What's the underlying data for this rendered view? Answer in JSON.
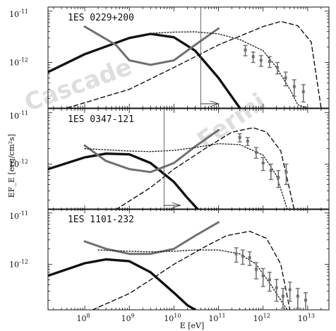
{
  "figure": {
    "ylabel": "EF_E [erg/cm²s]",
    "xlabel": "E [eV]",
    "x_tick_labels": [
      {
        "mantissa": "10",
        "exponent": "8"
      },
      {
        "mantissa": "10",
        "exponent": "9"
      },
      {
        "mantissa": "10",
        "exponent": "10"
      },
      {
        "mantissa": "10",
        "exponent": "11"
      },
      {
        "mantissa": "10",
        "exponent": "12"
      },
      {
        "mantissa": "10",
        "exponent": "13"
      }
    ],
    "y_tick_labels": [
      {
        "mantissa": "10",
        "exponent": "-11"
      },
      {
        "mantissa": "10",
        "exponent": "-12"
      }
    ],
    "watermarks": {
      "cascade": "Cascade",
      "fermi": "Fermi"
    },
    "colors": {
      "cascade_curve": "#111111",
      "fermi_sensitivity": "#707070",
      "intrinsic_dashed": "#111111",
      "absorbed_dotted": "#222222",
      "data_points": "#707070"
    }
  },
  "chart_data": [
    {
      "type": "line",
      "title": "1ES 0229+200",
      "x_scale": "log",
      "y_scale": "log",
      "xlim": [
        15000000,
        30000000000000
      ],
      "ylim": [
        1.3e-13,
        1.2e-11
      ],
      "series": [
        {
          "role": "cascade",
          "style": "solid-thick-black",
          "x": [
            15000000,
            100000000,
            1000000000,
            3000000000,
            10000000000,
            30000000000,
            100000000000,
            300000000000
          ],
          "y": [
            6.5e-13,
            1.45e-12,
            3e-12,
            3.6e-12,
            3.1e-12,
            1.7e-12,
            5e-13,
            1.3e-13
          ]
        },
        {
          "role": "fermi-sensitivity",
          "style": "solid-thick-gray",
          "x": [
            100000000,
            500000000,
            1000000000,
            3000000000,
            10000000000,
            30000000000,
            100000000000
          ],
          "y": [
            5e-12,
            2.2e-12,
            1.1e-12,
            9e-13,
            1.1e-12,
            2.2e-12,
            4.6e-12
          ]
        },
        {
          "role": "absorbed-model",
          "style": "dotted",
          "x": [
            3000000000,
            10000000000,
            30000000000,
            100000000000,
            300000000000,
            1000000000000,
            2000000000000,
            4000000000000,
            6000000000000,
            10000000000000
          ],
          "y": [
            3.7e-12,
            3.9e-12,
            3.95e-12,
            3.6e-12,
            2.8e-12,
            1.7e-12,
            8e-13,
            3e-13,
            1.5e-13,
            1.3e-13
          ]
        },
        {
          "role": "intrinsic-model",
          "style": "dashed",
          "x": [
            40000000,
            1000000000,
            10000000000,
            100000000000,
            1000000000000,
            2500000000000,
            6000000000000,
            12000000000000,
            20000000000000
          ],
          "y": [
            1.3e-13,
            3e-13,
            8e-13,
            2.2e-12,
            5e-12,
            6.3e-12,
            5.2e-12,
            2.5e-12,
            1.3e-13
          ]
        },
        {
          "role": "measured-points",
          "style": "errorbars",
          "x": [
            400000000000,
            600000000000,
            900000000000,
            1400000000000,
            2100000000000,
            3200000000000,
            5000000000000,
            8000000000000
          ],
          "y": [
            1.75e-12,
            1.3e-12,
            1.1e-12,
            1.05e-12,
            8e-13,
            5e-13,
            3.4e-13,
            2.7e-13
          ],
          "yerr_low": [
            4e-13,
            3e-13,
            2.6e-13,
            2.5e-13,
            2e-13,
            1.5e-13,
            1.2e-13,
            1e-13
          ],
          "yerr_high": [
            4e-13,
            3e-13,
            2.6e-13,
            2.5e-13,
            2e-13,
            1.5e-13,
            1.2e-13,
            1e-13
          ]
        }
      ],
      "limit_arrow": {
        "x": 40000000000,
        "y_from": 1.3e-13,
        "y_top": 1.2e-11,
        "x_to": 100000000000
      }
    },
    {
      "type": "line",
      "title": "1ES 0347-121",
      "x_scale": "log",
      "y_scale": "log",
      "xlim": [
        15000000,
        30000000000000
      ],
      "ylim": [
        1.3e-13,
        1.2e-11
      ],
      "series": [
        {
          "role": "cascade",
          "style": "solid-thick-black",
          "x": [
            15000000,
            100000000,
            300000000,
            1000000000,
            3000000000,
            10000000000,
            20000000000,
            35000000000
          ],
          "y": [
            8e-13,
            1.35e-12,
            1.6e-12,
            1.55e-12,
            1.05e-12,
            4.5e-13,
            2.2e-13,
            1.3e-13
          ]
        },
        {
          "role": "fermi-sensitivity",
          "style": "solid-thick-gray",
          "x": [
            100000000,
            300000000,
            1000000000,
            3000000000,
            10000000000,
            30000000000,
            100000000000
          ],
          "y": [
            2.3e-12,
            1.15e-12,
            8e-13,
            7e-13,
            1.05e-12,
            2.2e-12,
            4.6e-12
          ]
        },
        {
          "role": "absorbed-model",
          "style": "dotted",
          "x": [
            100000000,
            1000000000,
            3000000000,
            10000000000,
            30000000000,
            100000000000,
            300000000000,
            1000000000000,
            2000000000000,
            3500000000000
          ],
          "y": [
            2e-12,
            1.8e-12,
            1.75e-12,
            1.85e-12,
            2.1e-12,
            2.5e-12,
            2.4e-12,
            1.5e-12,
            6e-13,
            1.3e-13
          ]
        },
        {
          "role": "intrinsic-model",
          "style": "dashed",
          "x": [
            500000000,
            3000000000,
            10000000000,
            50000000000,
            200000000000,
            600000000000,
            1200000000000,
            2500000000000,
            5000000000000
          ],
          "y": [
            1.3e-13,
            3.5e-13,
            8e-13,
            2e-12,
            4.2e-12,
            5.1e-12,
            4.2e-12,
            1.8e-12,
            1.3e-13
          ]
        },
        {
          "role": "measured-points",
          "style": "errorbars",
          "x": [
            300000000000,
            450000000000,
            700000000000,
            1000000000000,
            1500000000000,
            2200000000000,
            3300000000000
          ],
          "y": [
            3.3e-12,
            2.8e-12,
            1.7e-12,
            1.05e-12,
            7.5e-13,
            5.5e-13,
            7e-13
          ],
          "yerr_low": [
            6e-13,
            5e-13,
            4e-13,
            3e-13,
            2.5e-13,
            2e-13,
            3e-13
          ],
          "yerr_high": [
            6e-13,
            5e-13,
            4e-13,
            3e-13,
            2.5e-13,
            2e-13,
            3e-13
          ]
        }
      ],
      "limit_arrow": {
        "x": 6000000000,
        "y_from": 1.3e-13,
        "y_top": 1.2e-11,
        "x_to": 14000000000
      }
    },
    {
      "type": "line",
      "title": "1ES 1101-232",
      "x_scale": "log",
      "y_scale": "log",
      "xlim": [
        15000000,
        30000000000000
      ],
      "ylim": [
        1.3e-13,
        1.2e-11
      ],
      "series": [
        {
          "role": "cascade",
          "style": "solid-thick-black",
          "x": [
            15000000,
            100000000,
            300000000,
            1000000000,
            3000000000,
            10000000000,
            20000000000,
            30000000000
          ],
          "y": [
            6e-13,
            1.05e-12,
            1.25e-12,
            1.15e-12,
            7e-13,
            2.8e-13,
            1.6e-13,
            1.3e-13
          ]
        },
        {
          "role": "fermi-sensitivity",
          "style": "solid-thick-gray",
          "x": [
            100000000,
            300000000,
            1000000000,
            3000000000,
            10000000000,
            30000000000,
            100000000000
          ],
          "y": [
            2.8e-12,
            2e-12,
            1.6e-12,
            1.6e-12,
            2e-12,
            3.6e-12,
            6.6e-12
          ]
        },
        {
          "role": "absorbed-model",
          "style": "dotted",
          "x": [
            200000000,
            1000000000,
            3000000000,
            10000000000,
            30000000000,
            100000000000,
            300000000000,
            700000000000,
            1500000000000,
            2500000000000,
            3500000000000
          ],
          "y": [
            1.9e-12,
            1.8e-12,
            1.75e-12,
            1.8e-12,
            1.9e-12,
            1.9e-12,
            1.6e-12,
            1e-12,
            4e-13,
            2e-13,
            1.3e-13
          ]
        },
        {
          "role": "intrinsic-model",
          "style": "dashed",
          "x": [
            150000000,
            1000000000,
            3000000000,
            10000000000,
            50000000000,
            150000000000,
            500000000000,
            1200000000000,
            2500000000000,
            4000000000000
          ],
          "y": [
            1.3e-13,
            2.7e-13,
            5e-13,
            1e-12,
            2.2e-12,
            3.6e-12,
            4.4e-12,
            3.2e-12,
            1e-12,
            1.3e-13
          ]
        },
        {
          "role": "measured-points",
          "style": "errorbars",
          "x": [
            250000000000,
            350000000000,
            500000000000,
            700000000000,
            1000000000000,
            1400000000000,
            2000000000000,
            2800000000000,
            4000000000000,
            6000000000000,
            9000000000000
          ],
          "y": [
            1.6e-12,
            1.45e-12,
            1.35e-12,
            8e-13,
            6e-13,
            5e-13,
            3.5e-13,
            2.4e-13,
            3.2e-13,
            2.4e-13,
            2e-13
          ],
          "yerr_low": [
            5e-13,
            4.5e-13,
            4e-13,
            2.8e-13,
            2.3e-13,
            2e-13,
            1.6e-13,
            1e-13,
            1.3e-13,
            1e-13,
            8e-14
          ],
          "yerr_high": [
            5e-13,
            4.5e-13,
            4e-13,
            2.8e-13,
            2.3e-13,
            2e-13,
            1.6e-13,
            1e-13,
            1.3e-13,
            1e-13,
            8e-14
          ]
        }
      ],
      "limit_arrow": null
    }
  ]
}
